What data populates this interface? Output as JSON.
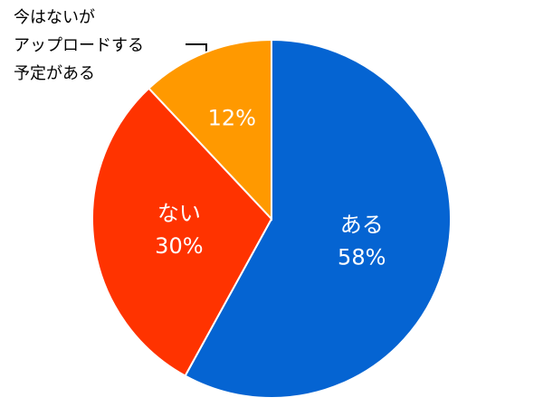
{
  "chart_data": {
    "type": "pie",
    "categories": [
      "ある",
      "ない",
      "今はないが\nアップロードする\n予定がある"
    ],
    "values": [
      58,
      30,
      12
    ],
    "value_labels": [
      "58%",
      "30%",
      "12%"
    ],
    "colors": [
      "#0564d2",
      "#ff3300",
      "#ff9900"
    ]
  }
}
